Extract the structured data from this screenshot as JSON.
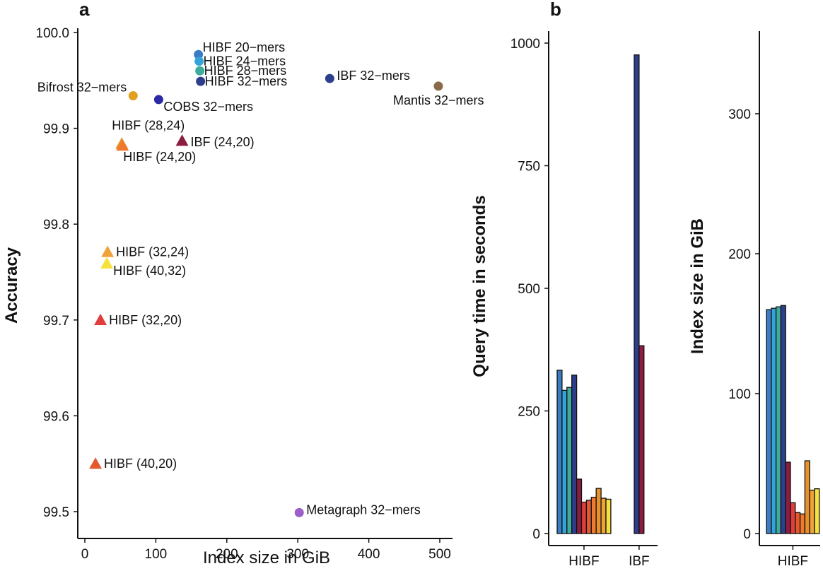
{
  "panel_labels": {
    "a": "a",
    "b": "b"
  },
  "chart_data": [
    {
      "type": "scatter",
      "xlabel": "Index size in GiB",
      "ylabel": "Accuracy",
      "xlim": [
        -10,
        520
      ],
      "ylim": [
        99.48,
        100.0
      ],
      "xticks": [
        0,
        100,
        200,
        300,
        400,
        500
      ],
      "yticks": [
        99.5,
        99.6,
        99.7,
        99.8,
        99.9,
        100.0
      ],
      "ytick_labels": [
        "99.5",
        "99.6",
        "99.7",
        "99.8",
        "99.9",
        "100.0"
      ],
      "points": [
        {
          "label": "HIBF 20−mers",
          "x": 160,
          "y": 99.977,
          "shape": "circle",
          "color": "#3a7dc4",
          "anchor": "right-up"
        },
        {
          "label": "HIBF 24−mers",
          "x": 161,
          "y": 99.97,
          "shape": "circle",
          "color": "#33a3d8",
          "anchor": "right"
        },
        {
          "label": "HIBF 28−mers",
          "x": 162,
          "y": 99.96,
          "shape": "circle",
          "color": "#3eab9c",
          "anchor": "right"
        },
        {
          "label": "HIBF 32−mers",
          "x": 163,
          "y": 99.949,
          "shape": "circle",
          "color": "#2d3f8c",
          "anchor": "right"
        },
        {
          "label": "IBF 32−mers",
          "x": 345,
          "y": 99.952,
          "shape": "circle",
          "color": "#2d3f8c",
          "anchor": "right"
        },
        {
          "label": "Mantis 32−mers",
          "x": 498,
          "y": 99.944,
          "shape": "circle",
          "color": "#8b6a4a",
          "anchor": "below"
        },
        {
          "label": "Bifrost 32−mers",
          "x": 68,
          "y": 99.934,
          "shape": "circle",
          "color": "#e0a020",
          "anchor": "left"
        },
        {
          "label": "COBS 32−mers",
          "x": 104,
          "y": 99.93,
          "shape": "circle",
          "color": "#2a2aa6",
          "anchor": "below-right"
        },
        {
          "label": "HIBF (28,24)",
          "x": 52,
          "y": 99.884,
          "shape": "triangle",
          "color": "#e8912a",
          "anchor": "above"
        },
        {
          "label": "HIBF (24,20)",
          "x": 53,
          "y": 99.882,
          "shape": "triangle",
          "color": "#ef7a2f",
          "anchor": "below"
        },
        {
          "label": "IBF (24,20)",
          "x": 137,
          "y": 99.887,
          "shape": "triangle",
          "color": "#8c1d3f",
          "anchor": "right"
        },
        {
          "label": "HIBF (32,24)",
          "x": 32,
          "y": 99.771,
          "shape": "triangle",
          "color": "#f0a23a",
          "anchor": "right"
        },
        {
          "label": "HIBF (40,32)",
          "x": 31,
          "y": 99.759,
          "shape": "triangle",
          "color": "#f6e23c",
          "anchor": "right"
        },
        {
          "label": "HIBF (32,20)",
          "x": 22,
          "y": 99.7,
          "shape": "triangle",
          "color": "#e13d3d",
          "anchor": "right"
        },
        {
          "label": "HIBF (40,20)",
          "x": 15,
          "y": 99.55,
          "shape": "triangle",
          "color": "#e25a2b",
          "anchor": "right"
        },
        {
          "label": "Metagraph 32−mers",
          "x": 302,
          "y": 99.499,
          "shape": "circle",
          "color": "#9b5fc8",
          "anchor": "right"
        }
      ]
    },
    {
      "type": "bar",
      "ylabel": "Query time in seconds",
      "ylim": [
        0,
        1050
      ],
      "yticks": [
        0,
        250,
        500,
        750,
        1000
      ],
      "groups": [
        {
          "name": "HIBF",
          "values": [
            333,
            292,
            298,
            323,
            111,
            64,
            68,
            74,
            92,
            72,
            70
          ],
          "colors": [
            "#3a7dc4",
            "#33a3d8",
            "#3eab9c",
            "#2d3f8c",
            "#8c1d3f",
            "#e13d3d",
            "#e25a2b",
            "#ef7a2f",
            "#e8912a",
            "#f0a23a",
            "#f6e23c"
          ]
        },
        {
          "name": "IBF",
          "values": [
            976,
            383
          ],
          "colors": [
            "#2d3f8c",
            "#8c1d3f"
          ]
        }
      ]
    },
    {
      "type": "bar",
      "ylabel": "Index size in GiB",
      "ylim": [
        0,
        370
      ],
      "yticks": [
        0,
        100,
        200,
        300
      ],
      "groups": [
        {
          "name": "HIBF",
          "values": [
            160,
            161,
            162,
            163,
            51,
            22,
            15,
            14,
            52,
            31,
            32
          ],
          "colors": [
            "#3a7dc4",
            "#33a3d8",
            "#3eab9c",
            "#2d3f8c",
            "#8c1d3f",
            "#e13d3d",
            "#e25a2b",
            "#ef7a2f",
            "#e8912a",
            "#f0a23a",
            "#f6e23c"
          ]
        }
      ]
    }
  ]
}
